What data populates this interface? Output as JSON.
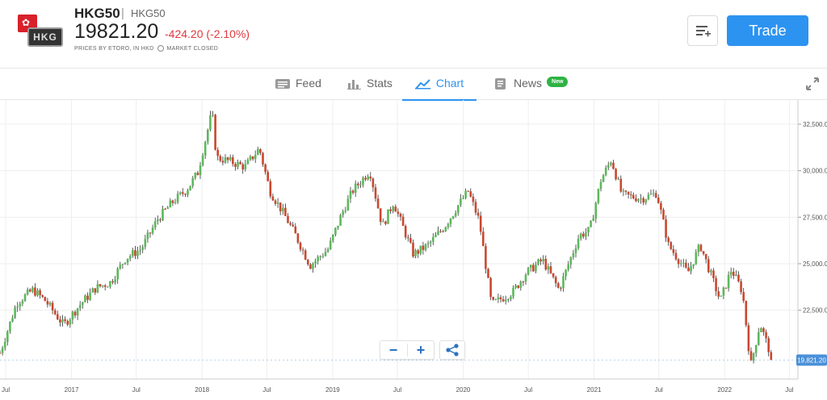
{
  "header": {
    "symbol": "HKG50",
    "separator": "|",
    "sub_name": "HKG50",
    "price": "19821.20",
    "change": "-424.20 (-2.10%)",
    "prices_by": "PRICES BY ETORO, IN HKD",
    "market_status": "MARKET CLOSED",
    "badge_text": "HKG",
    "trade_label": "Trade",
    "colors": {
      "accent": "#2d93f0",
      "negative": "#e0393e",
      "new_badge": "#2fb344"
    }
  },
  "tabs": [
    {
      "label": "Feed",
      "icon": "feed-icon",
      "active": false
    },
    {
      "label": "Stats",
      "icon": "stats-icon",
      "active": false
    },
    {
      "label": "Chart",
      "icon": "chart-icon",
      "active": true
    },
    {
      "label": "News",
      "icon": "news-icon",
      "active": false,
      "badge": "New"
    }
  ],
  "chart_data": {
    "type": "candlestick",
    "x_ticks": [
      "Jul",
      "2017",
      "Jul",
      "2018",
      "Jul",
      "2019",
      "Jul",
      "2020",
      "Jul",
      "2021",
      "Jul",
      "2022",
      "Jul"
    ],
    "x_tick_dates": [
      "2016-07-01",
      "2017-01-01",
      "2017-07-01",
      "2018-01-01",
      "2018-07-01",
      "2019-01-01",
      "2019-07-01",
      "2020-01-01",
      "2020-07-01",
      "2021-01-01",
      "2021-07-01",
      "2022-01-01",
      "2022-07-01"
    ],
    "y_ticks": [
      22500,
      25000,
      27500,
      30000,
      32500
    ],
    "y_tick_labels": [
      "22,500.0",
      "25,000.0",
      "27,500.0",
      "30,000.0",
      "32,500.0"
    ],
    "ylim": [
      18800,
      33800
    ],
    "xlim": [
      "2016-06-15",
      "2022-07-25"
    ],
    "current_price": 19821.2,
    "current_price_label": "19,821.20",
    "up_color": "#5cb85c",
    "down_color": "#c9482f",
    "close_series": [
      [
        "2016-06-15",
        20200
      ],
      [
        "2016-08-01",
        22900
      ],
      [
        "2016-09-15",
        23600
      ],
      [
        "2016-10-20",
        23000
      ],
      [
        "2016-12-10",
        21700
      ],
      [
        "2017-01-25",
        22800
      ],
      [
        "2017-03-10",
        23700
      ],
      [
        "2017-04-20",
        24000
      ],
      [
        "2017-06-01",
        25300
      ],
      [
        "2017-07-15",
        25800
      ],
      [
        "2017-08-30",
        27400
      ],
      [
        "2017-10-10",
        28300
      ],
      [
        "2017-11-20",
        29000
      ],
      [
        "2017-12-20",
        29900
      ],
      [
        "2018-01-29",
        33200
      ],
      [
        "2018-02-10",
        30700
      ],
      [
        "2018-03-20",
        30500
      ],
      [
        "2018-05-01",
        30200
      ],
      [
        "2018-06-10",
        31200
      ],
      [
        "2018-07-10",
        28900
      ],
      [
        "2018-08-20",
        27600
      ],
      [
        "2018-09-20",
        26500
      ],
      [
        "2018-10-30",
        24900
      ],
      [
        "2018-12-20",
        25800
      ],
      [
        "2019-01-25",
        27600
      ],
      [
        "2019-02-25",
        28900
      ],
      [
        "2019-04-15",
        30000
      ],
      [
        "2019-05-20",
        27000
      ],
      [
        "2019-06-20",
        28300
      ],
      [
        "2019-08-15",
        25500
      ],
      [
        "2019-09-25",
        26000
      ],
      [
        "2019-11-10",
        27000
      ],
      [
        "2019-12-20",
        28200
      ],
      [
        "2020-01-15",
        28900
      ],
      [
        "2020-02-15",
        27300
      ],
      [
        "2020-03-20",
        22800
      ],
      [
        "2020-05-20",
        23500
      ],
      [
        "2020-06-25",
        24500
      ],
      [
        "2020-08-10",
        25200
      ],
      [
        "2020-09-25",
        23600
      ],
      [
        "2020-11-20",
        26500
      ],
      [
        "2020-12-20",
        26800
      ],
      [
        "2021-01-20",
        29500
      ],
      [
        "2021-02-18",
        30600
      ],
      [
        "2021-03-20",
        28700
      ],
      [
        "2021-05-15",
        28500
      ],
      [
        "2021-06-25",
        28800
      ],
      [
        "2021-07-28",
        26000
      ],
      [
        "2021-09-20",
        24500
      ],
      [
        "2021-10-25",
        26000
      ],
      [
        "2021-12-20",
        23000
      ],
      [
        "2022-01-20",
        24700
      ],
      [
        "2022-02-20",
        23500
      ],
      [
        "2022-03-15",
        19500
      ],
      [
        "2022-04-10",
        21800
      ],
      [
        "2022-05-15",
        19821
      ]
    ]
  }
}
